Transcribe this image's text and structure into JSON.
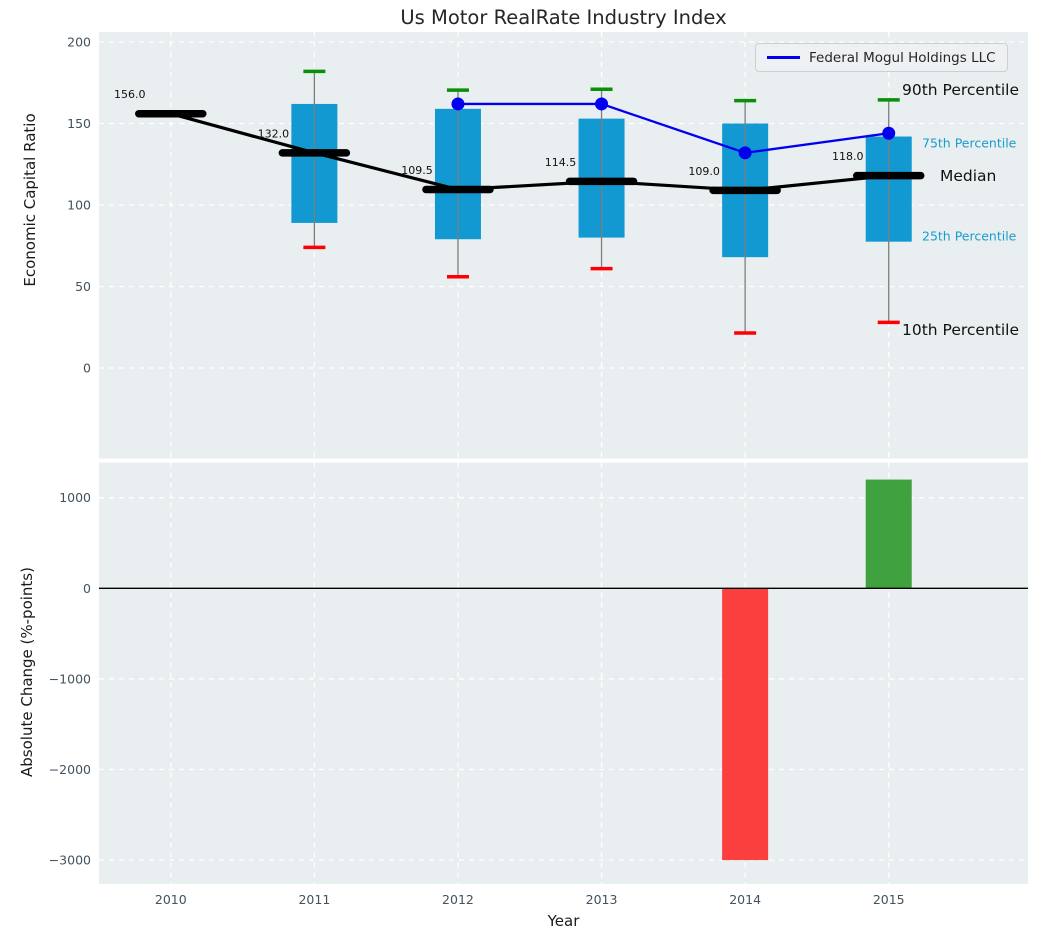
{
  "title": "Us Motor RealRate Industry Index",
  "xlabel": "Year",
  "legend": {
    "label": "Federal Mogul Holdings LLC"
  },
  "top_panel": {
    "ylabel": "Economic Capital Ratio",
    "yticks": [
      {
        "value": 200,
        "label": "200"
      },
      {
        "value": 150,
        "label": "150"
      },
      {
        "value": 100,
        "label": "100"
      },
      {
        "value": 50,
        "label": "50"
      },
      {
        "value": 0,
        "label": "0"
      }
    ],
    "annotations": [
      {
        "text": "90th Percentile",
        "value": 170.5,
        "style": "large"
      },
      {
        "text": "75th Percentile",
        "value": 138,
        "style": "small"
      },
      {
        "text": "Median",
        "value": 117.5,
        "style": "large"
      },
      {
        "text": "25th Percentile",
        "value": 81,
        "style": "small"
      },
      {
        "text": "10th Percentile",
        "value": 23.5,
        "style": "large"
      }
    ]
  },
  "bottom_panel": {
    "ylabel": "Absolute Change (%-points)",
    "yticks": [
      {
        "value": 1000,
        "label": "1000"
      },
      {
        "value": 0,
        "label": "0"
      },
      {
        "value": -1000,
        "label": "−1000"
      },
      {
        "value": -2000,
        "label": "−2000"
      },
      {
        "value": -3000,
        "label": "−3000"
      }
    ]
  },
  "colors": {
    "panel_bg": "#e9eef0",
    "grid": "#ffffff",
    "box_fill": "#1299d2",
    "whisker": "#7d7d7d",
    "cap_high": "#0a8f0a",
    "cap_low": "#ff0000",
    "median": "#000000",
    "median_label": "#111111",
    "company_line": "#0000ee",
    "bar_negative": "#fb3e3e",
    "bar_positive": "#3fa23f",
    "zero_line": "#000000",
    "tick_label": "#43525e"
  },
  "chart_data": {
    "type": "boxplot+line+bar",
    "title": "Us Motor RealRate Industry Index",
    "xlabel": "Year",
    "categories": [
      "2010",
      "2011",
      "2012",
      "2013",
      "2014",
      "2015"
    ],
    "top": {
      "ylabel": "Economic Capital Ratio",
      "ylim": [
        -55,
        206
      ],
      "boxes": [
        {
          "category": "2010",
          "p10": null,
          "p25": null,
          "median": 156.0,
          "p75": null,
          "p90": null,
          "label": "156.0"
        },
        {
          "category": "2011",
          "p10": 74,
          "p25": 89,
          "median": 132.0,
          "p75": 162,
          "p90": 182,
          "label": "132.0"
        },
        {
          "category": "2012",
          "p10": 56,
          "p25": 79,
          "median": 109.5,
          "p75": 159,
          "p90": 170.5,
          "label": "109.5"
        },
        {
          "category": "2013",
          "p10": 61,
          "p25": 80,
          "median": 114.5,
          "p75": 153,
          "p90": 171,
          "label": "114.5"
        },
        {
          "category": "2014",
          "p10": 21.5,
          "p25": 68,
          "median": 109.0,
          "p75": 150,
          "p90": 164,
          "label": "109.0"
        },
        {
          "category": "2015",
          "p10": 28,
          "p25": 77.5,
          "median": 118.0,
          "p75": 142,
          "p90": 164.5,
          "label": "118.0"
        }
      ],
      "company_line": {
        "name": "Federal Mogul Holdings LLC",
        "points": [
          {
            "category": "2012",
            "value": 162
          },
          {
            "category": "2013",
            "value": 162
          },
          {
            "category": "2014",
            "value": 132
          },
          {
            "category": "2015",
            "value": 144
          }
        ]
      }
    },
    "bottom": {
      "ylabel": "Absolute Change (%-points)",
      "ylim": [
        -3270,
        1400
      ],
      "bars": [
        {
          "category": "2014",
          "value": -3000
        },
        {
          "category": "2015",
          "value": 1200
        }
      ]
    },
    "legend_position": "upper right",
    "grid": true
  }
}
